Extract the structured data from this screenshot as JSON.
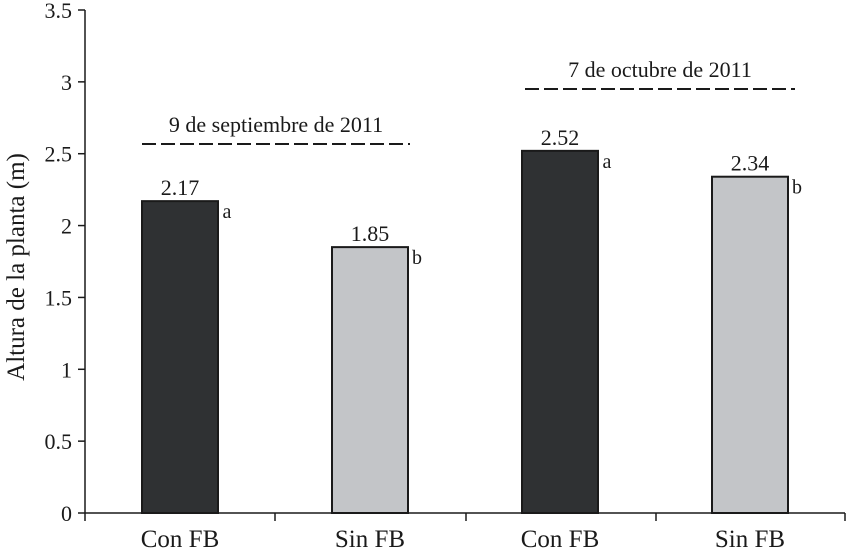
{
  "chart_data": {
    "type": "bar",
    "title": "",
    "xlabel": "",
    "ylabel": "Altura de la planta (m)",
    "ylim": [
      0,
      3.5
    ],
    "yticks": [
      "0",
      "0.5",
      "1",
      "1.5",
      "2",
      "2.5",
      "3",
      "3.5"
    ],
    "categories": [
      "Con FB",
      "Sin FB",
      "Con FB",
      "Sin FB"
    ],
    "values": [
      2.17,
      1.85,
      2.52,
      2.34
    ],
    "value_labels": [
      "2.17",
      "1.85",
      "2.52",
      "2.34"
    ],
    "significance_letters": [
      "a",
      "b",
      "a",
      "b"
    ],
    "bar_colors": [
      "#2f3133",
      "#c3c5c8",
      "#2f3133",
      "#c3c5c8"
    ],
    "groups": [
      {
        "label": "9 de septiembre de 2011",
        "bars": [
          0,
          1
        ]
      },
      {
        "label": "7 de octubre de 2011",
        "bars": [
          2,
          3
        ]
      }
    ],
    "grid": false
  }
}
